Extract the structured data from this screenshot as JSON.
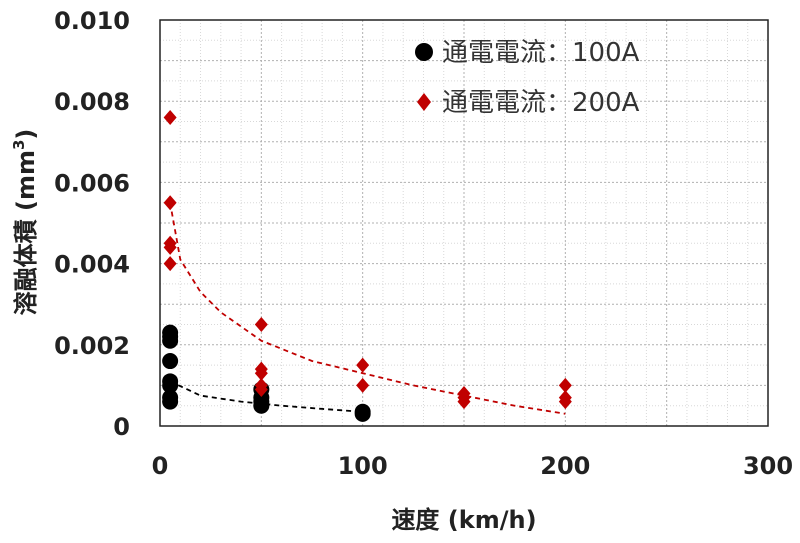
{
  "chart_data": {
    "type": "scatter",
    "xlabel": "速度 (km/h)",
    "ylabel": "溶融体積 (mm",
    "ylabel_sup": "3",
    "ylabel_close": ")",
    "xlim": [
      0,
      300
    ],
    "ylim": [
      0,
      0.01
    ],
    "x_ticks": [
      "0",
      "100",
      "200",
      "300"
    ],
    "y_ticks": [
      "0",
      "0.002",
      "0.004",
      "0.006",
      "0.008",
      "0.010"
    ],
    "grid": true,
    "legend_position": "top-right",
    "series": [
      {
        "name": "通電電流：100A",
        "marker": "circle",
        "color": "#000000",
        "points": [
          [
            5,
            0.0023
          ],
          [
            5,
            0.0022
          ],
          [
            5,
            0.0021
          ],
          [
            5,
            0.0016
          ],
          [
            5,
            0.0011
          ],
          [
            5,
            0.001
          ],
          [
            5,
            0.0007
          ],
          [
            5,
            0.0006
          ],
          [
            50,
            0.0009
          ],
          [
            50,
            0.0007
          ],
          [
            50,
            0.0006
          ],
          [
            50,
            0.0005
          ],
          [
            100,
            0.00035
          ],
          [
            100,
            0.0003
          ]
        ],
        "trend": [
          [
            5,
            0.0011
          ],
          [
            20,
            0.00075
          ],
          [
            40,
            0.0006
          ],
          [
            60,
            0.0005
          ],
          [
            80,
            0.00042
          ],
          [
            100,
            0.00035
          ]
        ]
      },
      {
        "name": "通電電流：200A",
        "marker": "diamond",
        "color": "#c00000",
        "points": [
          [
            5,
            0.0076
          ],
          [
            5,
            0.0055
          ],
          [
            5,
            0.0045
          ],
          [
            5,
            0.0044
          ],
          [
            5,
            0.004
          ],
          [
            50,
            0.0025
          ],
          [
            50,
            0.0014
          ],
          [
            50,
            0.0013
          ],
          [
            50,
            0.001
          ],
          [
            50,
            0.0009
          ],
          [
            100,
            0.0015
          ],
          [
            100,
            0.001
          ],
          [
            150,
            0.0008
          ],
          [
            150,
            0.0007
          ],
          [
            150,
            0.0006
          ],
          [
            200,
            0.001
          ],
          [
            200,
            0.0007
          ],
          [
            200,
            0.0006
          ]
        ],
        "trend": [
          [
            5,
            0.0055
          ],
          [
            10,
            0.0041
          ],
          [
            20,
            0.0033
          ],
          [
            30,
            0.0028
          ],
          [
            50,
            0.0021
          ],
          [
            75,
            0.0016
          ],
          [
            100,
            0.0013
          ],
          [
            125,
            0.001
          ],
          [
            150,
            0.00075
          ],
          [
            175,
            0.0005
          ],
          [
            200,
            0.0003
          ]
        ]
      }
    ]
  }
}
